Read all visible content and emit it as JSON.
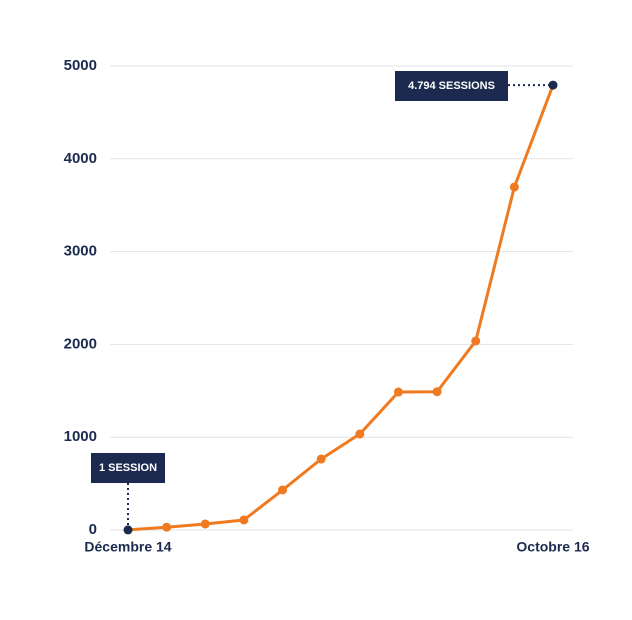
{
  "chart_data": {
    "type": "line",
    "categories": [
      "Décembre 14",
      null,
      null,
      null,
      null,
      null,
      null,
      null,
      null,
      null,
      null,
      "Octobre 16"
    ],
    "series": [
      {
        "name": "Sessions",
        "color": "#f07a1f",
        "values": [
          1,
          30,
          65,
          108,
          431,
          765,
          1034,
          1487,
          1490,
          2037,
          3696,
          4794
        ]
      }
    ],
    "annotations": [
      "1 SESSION",
      "4.794 SESSIONS"
    ],
    "ylim": [
      0,
      5000
    ],
    "yticks": [
      0,
      1000,
      2000,
      3000,
      4000,
      5000
    ],
    "grid": true
  }
}
